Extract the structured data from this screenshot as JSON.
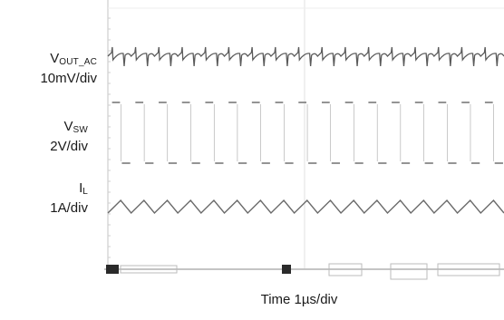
{
  "chart_data": {
    "type": "line",
    "title": "",
    "xlabel": "Time 1µs/div",
    "series": [
      {
        "name": "V",
        "name_sub": "OUT_AC",
        "scale": "10mV/div",
        "waveform": "ripple-with-spikes",
        "color": "#5a5a5a"
      },
      {
        "name": "V",
        "name_sub": "SW",
        "scale": "2V/div",
        "waveform": "square",
        "color": "#7a7a7a"
      },
      {
        "name": "I",
        "name_sub": "L",
        "scale": "1A/div",
        "waveform": "triangle",
        "color": "#6a6a6a"
      }
    ],
    "x_divisions": 10,
    "switching_cycles": 17,
    "grid": false
  }
}
